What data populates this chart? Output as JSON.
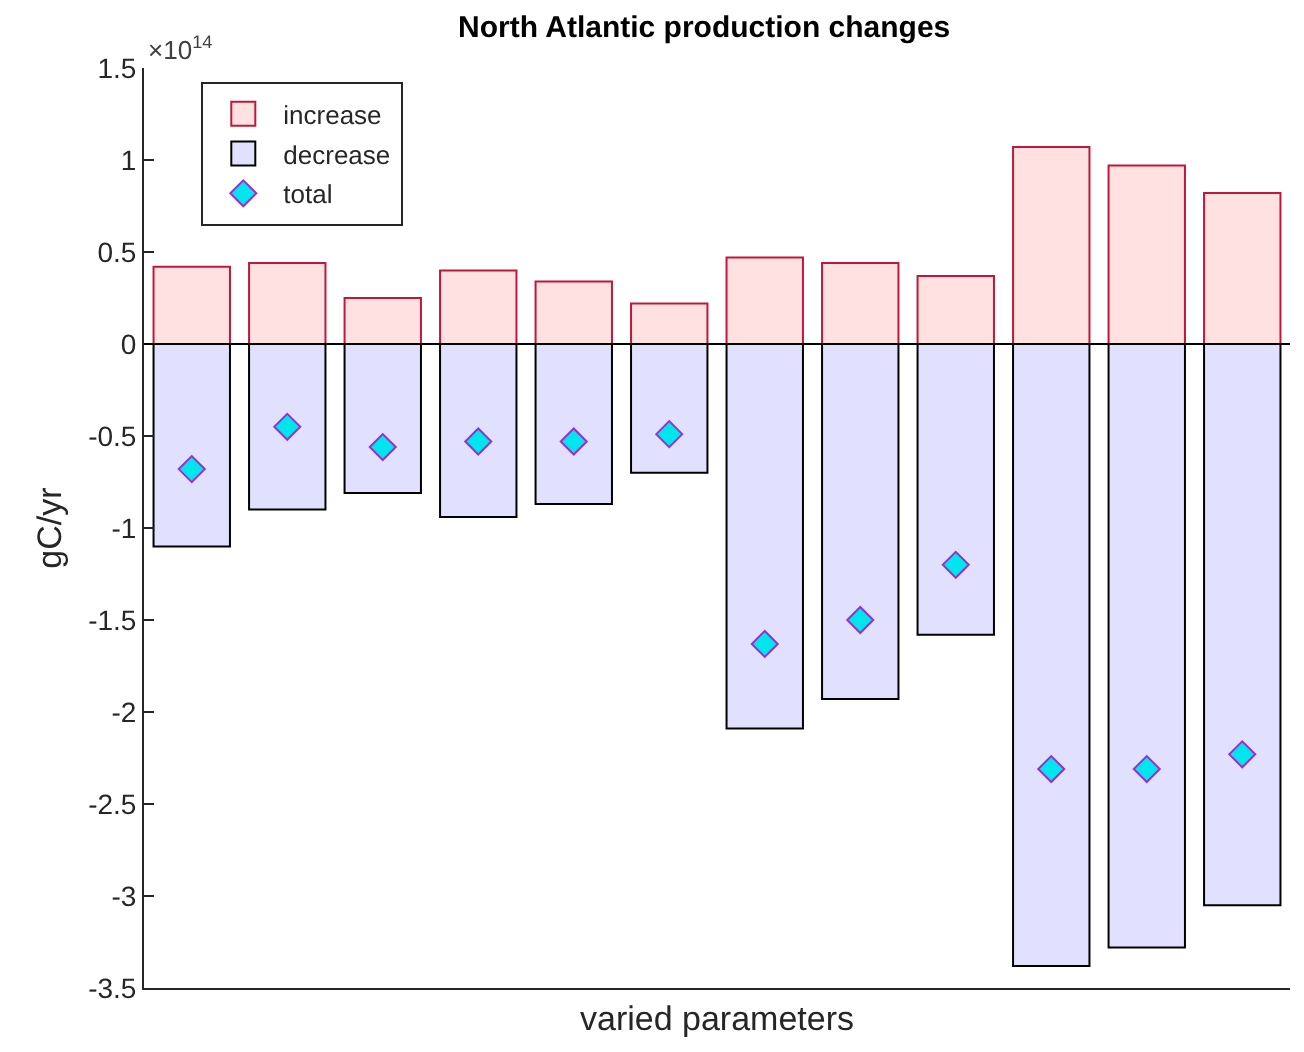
{
  "chart_data": {
    "type": "bar",
    "title": "North Atlantic production changes",
    "xlabel": "varied parameters",
    "ylabel": "gC/yr",
    "annotations": [
      "×10$^{14}$"
    ],
    "categories": [
      null,
      null,
      null,
      null,
      null,
      null,
      null,
      null,
      null,
      null,
      null,
      null
    ],
    "stacked": true,
    "series": [
      {
        "name": "increase",
        "color": "#ffe1e1",
        "values": [
          0.42,
          0.44,
          0.25,
          0.4,
          0.34,
          0.22,
          0.47,
          0.44,
          0.37,
          1.07,
          0.97,
          0.82
        ]
      },
      {
        "name": "decrease",
        "color": "#e1e1ff",
        "values": [
          -1.1,
          -0.9,
          -0.81,
          -0.94,
          -0.87,
          -0.7,
          -2.09,
          -1.93,
          -1.58,
          -3.38,
          -3.28,
          -3.05
        ]
      },
      {
        "name": "total",
        "type": "scatter",
        "color": "#00e5ee",
        "marker": "diamond",
        "values": [
          -0.68,
          -0.45,
          -0.56,
          -0.53,
          -0.53,
          -0.49,
          -1.63,
          -1.5,
          -1.2,
          -2.31,
          -2.31,
          -2.23
        ]
      }
    ],
    "ylim": [
      -3.5,
      1.5
    ],
    "yticks": [
      -3.5,
      -3,
      -2.5,
      -2,
      -1.5,
      -1,
      -0.5,
      0,
      0.5,
      1,
      1.5
    ],
    "ref_lines": [
      {
        "axis": "y",
        "value": 0,
        "color": "#000000"
      }
    ],
    "grid": false,
    "legend": "top left"
  }
}
